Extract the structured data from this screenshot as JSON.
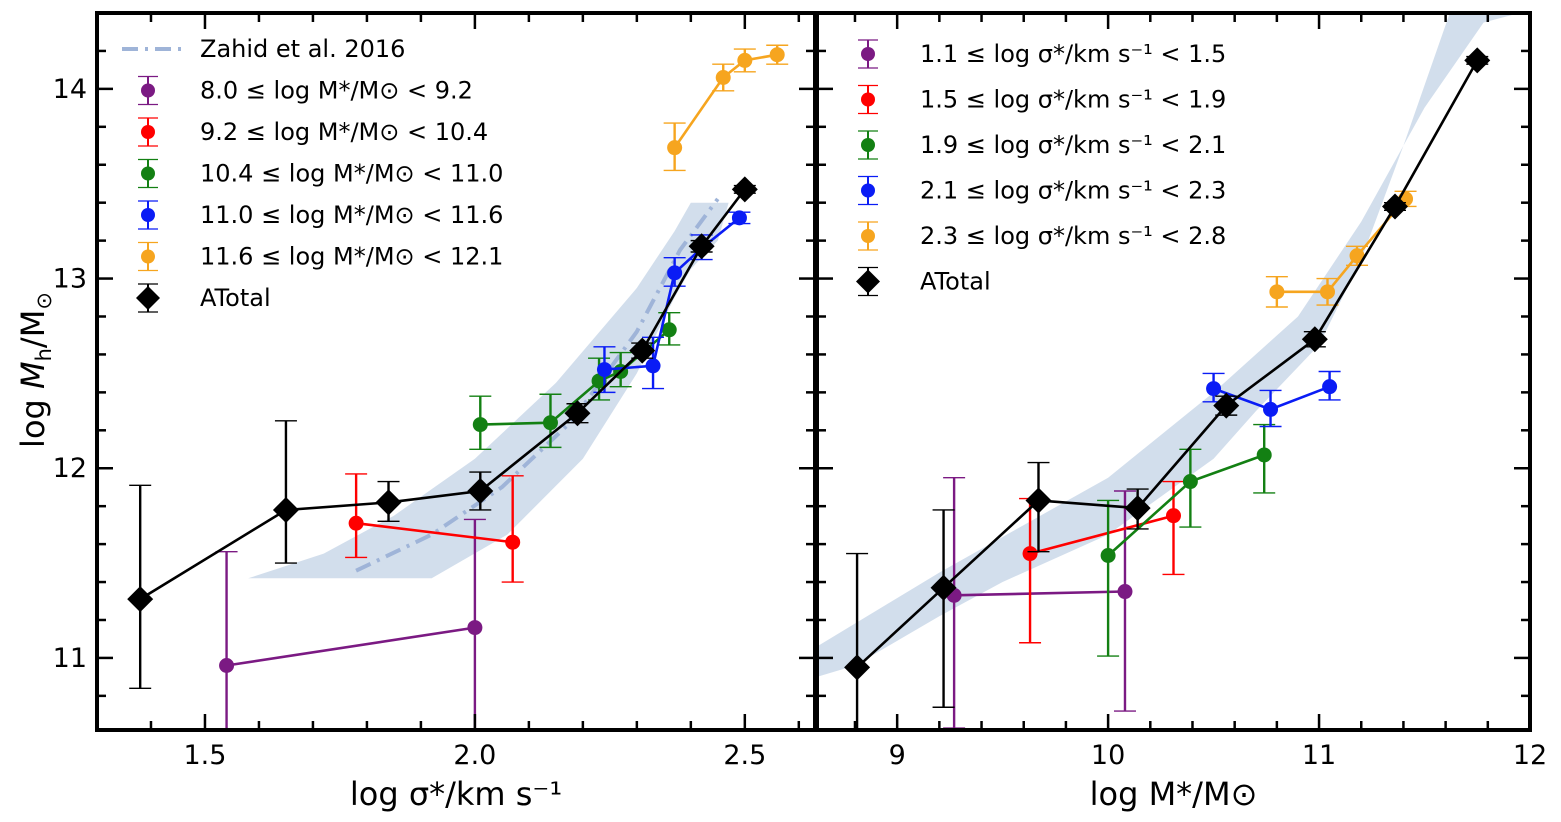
{
  "y_axis_label": "log M_h/M_⊙",
  "chart_data": [
    {
      "type": "line",
      "xlabel": "log σ*/km s⁻¹",
      "ylabel": "log M_h/M_⊙",
      "xlim": [
        1.3,
        2.63
      ],
      "ylim": [
        10.62,
        14.4
      ],
      "xticks": [
        1.5,
        2.0,
        2.5
      ],
      "xtick_labels": [
        "1.5",
        "2.0",
        "2.5"
      ],
      "yticks": [
        11,
        12,
        13,
        14
      ],
      "ytick_labels": [
        "11",
        "12",
        "13",
        "14"
      ],
      "legend_position": "upper-left",
      "reference_band": {
        "label": "Zahid et al. 2016",
        "color": "#b4c8e0",
        "line_color": "#9fb4d8",
        "upper": [
          [
            1.72,
            11.55
          ],
          [
            1.85,
            11.75
          ],
          [
            2.0,
            12.05
          ],
          [
            2.15,
            12.45
          ],
          [
            2.3,
            12.95
          ],
          [
            2.37,
            13.25
          ],
          [
            2.4,
            13.4
          ],
          [
            2.47,
            13.4
          ]
        ],
        "lower": [
          [
            1.58,
            11.42
          ],
          [
            1.92,
            11.42
          ],
          [
            2.06,
            11.65
          ],
          [
            2.2,
            12.05
          ],
          [
            2.3,
            12.5
          ],
          [
            2.37,
            12.9
          ],
          [
            2.4,
            13.05
          ],
          [
            2.45,
            13.2
          ],
          [
            2.47,
            13.4
          ]
        ],
        "line": [
          [
            1.78,
            11.46
          ],
          [
            1.92,
            11.65
          ],
          [
            2.05,
            11.9
          ],
          [
            2.18,
            12.25
          ],
          [
            2.3,
            12.72
          ],
          [
            2.38,
            13.15
          ],
          [
            2.45,
            13.42
          ]
        ]
      },
      "series": [
        {
          "name": "8.0 ≤ log M*/M⊙ < 9.2",
          "color": "#7b1a83",
          "marker": "circle",
          "points": [
            [
              1.54,
              10.96,
              0.6,
              0.6
            ],
            [
              2.0,
              11.16,
              0.57,
              0.57
            ]
          ]
        },
        {
          "name": "9.2 ≤ log M*/M⊙ < 10.4",
          "color": "#ff0000",
          "marker": "circle",
          "points": [
            [
              1.78,
              11.71,
              0.18,
              0.26
            ],
            [
              2.07,
              11.61,
              0.21,
              0.35
            ]
          ]
        },
        {
          "name": "10.4 ≤ log M*/M⊙ < 11.0",
          "color": "#138013",
          "marker": "circle",
          "points": [
            [
              2.01,
              12.23,
              0.13,
              0.15
            ],
            [
              2.14,
              12.24,
              0.13,
              0.15
            ],
            [
              2.23,
              12.46,
              0.1,
              0.12
            ],
            [
              2.27,
              12.51,
              0.08,
              0.1
            ],
            [
              2.36,
              12.73,
              0.08,
              0.09
            ]
          ]
        },
        {
          "name": "11.0 ≤ log M*/M⊙ < 11.6",
          "color": "#0a1cf5",
          "marker": "circle",
          "points": [
            [
              2.24,
              12.52,
              0.12,
              0.12
            ],
            [
              2.33,
              12.54,
              0.12,
              0.15
            ],
            [
              2.37,
              13.03,
              0.07,
              0.08
            ],
            [
              2.42,
              13.16,
              0.06,
              0.07
            ],
            [
              2.49,
              13.32,
              0.03,
              0.03
            ]
          ]
        },
        {
          "name": "11.6 ≤ log M*/M⊙ < 12.1",
          "color": "#f6a51f",
          "marker": "circle",
          "points": [
            [
              2.37,
              13.69,
              0.12,
              0.13
            ],
            [
              2.46,
              14.06,
              0.07,
              0.07
            ],
            [
              2.5,
              14.15,
              0.06,
              0.06
            ],
            [
              2.56,
              14.18,
              0.05,
              0.05
            ]
          ]
        },
        {
          "name": "ATotal",
          "color": "#000000",
          "marker": "diamond",
          "points": [
            [
              1.38,
              11.31,
              0.47,
              0.6
            ],
            [
              1.65,
              11.78,
              0.28,
              0.47
            ],
            [
              1.84,
              11.82,
              0.1,
              0.11
            ],
            [
              2.01,
              11.88,
              0.1,
              0.1
            ],
            [
              2.19,
              12.29,
              0.05,
              0.05
            ],
            [
              2.31,
              12.62,
              0.04,
              0.04
            ],
            [
              2.42,
              13.17,
              0.03,
              0.03
            ],
            [
              2.5,
              13.47,
              0.02,
              0.02
            ]
          ]
        }
      ]
    },
    {
      "type": "line",
      "xlabel": "log M*/M⊙",
      "xlim": [
        8.62,
        12.0
      ],
      "ylim": [
        10.62,
        14.4
      ],
      "xticks": [
        9,
        10,
        11,
        12
      ],
      "xtick_labels": [
        "9",
        "10",
        "11",
        "12"
      ],
      "yticks": [
        11,
        12,
        13,
        14
      ],
      "legend_position": "upper-left",
      "reference_band": {
        "color": "#b4c8e0",
        "upper": [
          [
            8.62,
            11.06
          ],
          [
            9.2,
            11.45
          ],
          [
            9.6,
            11.7
          ],
          [
            10.0,
            11.95
          ],
          [
            10.5,
            12.4
          ],
          [
            10.9,
            12.8
          ],
          [
            11.2,
            13.3
          ],
          [
            11.5,
            13.9
          ],
          [
            11.78,
            14.35
          ],
          [
            11.95,
            14.4
          ]
        ],
        "lower": [
          [
            11.62,
            14.4
          ],
          [
            11.4,
            13.7
          ],
          [
            11.2,
            13.1
          ],
          [
            11.0,
            12.65
          ],
          [
            10.7,
            12.3
          ],
          [
            10.5,
            12.05
          ],
          [
            10.0,
            11.65
          ],
          [
            9.5,
            11.4
          ],
          [
            9.2,
            11.22
          ],
          [
            8.8,
            10.96
          ],
          [
            8.62,
            10.9
          ]
        ]
      },
      "series": [
        {
          "name": "1.1 ≤ log σ*/km s⁻¹ < 1.5",
          "color": "#7b1a83",
          "marker": "circle",
          "points": [
            [
              9.27,
              11.33,
              0.7,
              0.62
            ],
            [
              10.08,
              11.35,
              0.63,
              0.53
            ]
          ]
        },
        {
          "name": "1.5 ≤ log σ*/km s⁻¹ < 1.9",
          "color": "#ff0000",
          "marker": "circle",
          "points": [
            [
              9.63,
              11.55,
              0.47,
              0.29
            ],
            [
              10.31,
              11.75,
              0.31,
              0.18
            ]
          ]
        },
        {
          "name": "1.9 ≤ log σ*/km s⁻¹ < 2.1",
          "color": "#138013",
          "marker": "circle",
          "points": [
            [
              10.0,
              11.54,
              0.53,
              0.29
            ],
            [
              10.39,
              11.93,
              0.24,
              0.17
            ],
            [
              10.74,
              12.07,
              0.2,
              0.16
            ]
          ]
        },
        {
          "name": "2.1 ≤ log σ*/km s⁻¹ < 2.3",
          "color": "#0a1cf5",
          "marker": "circle",
          "points": [
            [
              10.5,
              12.42,
              0.07,
              0.08
            ],
            [
              10.77,
              12.31,
              0.09,
              0.1
            ],
            [
              11.05,
              12.43,
              0.07,
              0.08
            ]
          ]
        },
        {
          "name": "2.3 ≤ log σ*/km s⁻¹ < 2.8",
          "color": "#f6a51f",
          "marker": "circle",
          "points": [
            [
              10.8,
              12.93,
              0.08,
              0.08
            ],
            [
              11.04,
              12.93,
              0.07,
              0.07
            ],
            [
              11.18,
              13.12,
              0.05,
              0.05
            ],
            [
              11.41,
              13.42,
              0.04,
              0.04
            ]
          ]
        },
        {
          "name": "ATotal",
          "color": "#000000",
          "marker": "diamond",
          "points": [
            [
              8.81,
              10.95,
              0.6,
              0.6
            ],
            [
              9.22,
              11.37,
              0.63,
              0.41
            ],
            [
              9.67,
              11.83,
              0.27,
              0.2
            ],
            [
              10.14,
              11.79,
              0.11,
              0.1
            ],
            [
              10.56,
              12.33,
              0.05,
              0.05
            ],
            [
              10.98,
              12.68,
              0.04,
              0.04
            ],
            [
              11.36,
              13.38,
              0.02,
              0.02
            ],
            [
              11.75,
              14.15,
              0.02,
              0.02
            ]
          ]
        }
      ]
    }
  ]
}
